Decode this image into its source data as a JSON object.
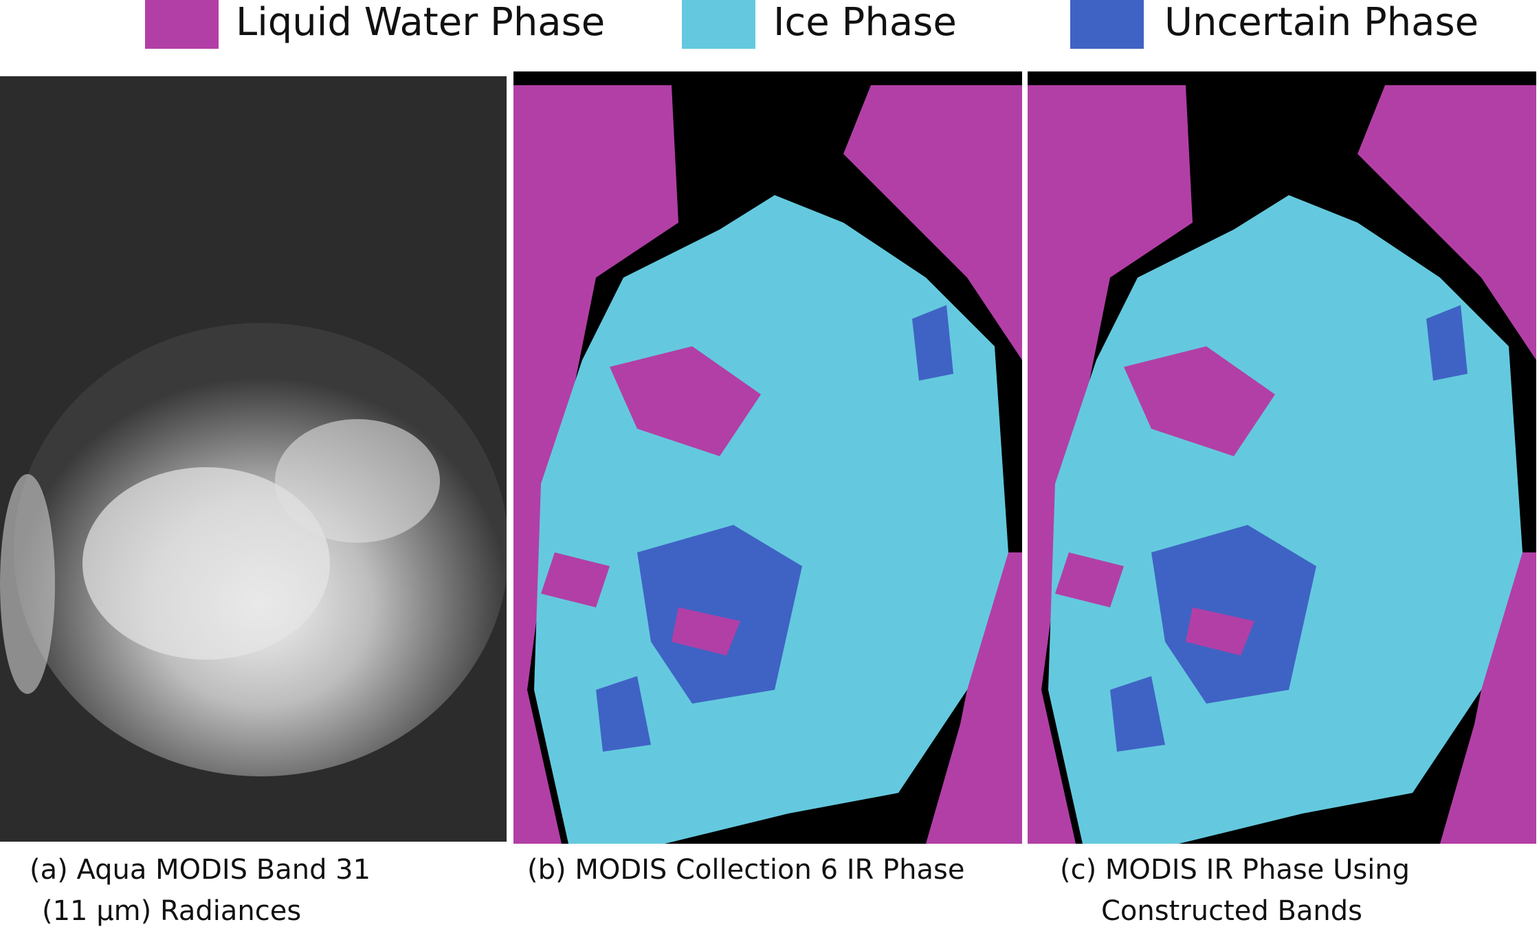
{
  "legend": [
    {
      "label": "Liquid Water Phase",
      "color": "#b23fa6"
    },
    {
      "label": "Ice Phase",
      "color": "#64c9de"
    },
    {
      "label": "Uncertain Phase",
      "color": "#3f63c4"
    }
  ],
  "panels": [
    {
      "caption": [
        "(a) Aqua MODIS Band 31",
        "(11 µm) Radiances"
      ]
    },
    {
      "caption": [
        "(b) MODIS Collection 6  IR Phase"
      ]
    },
    {
      "caption": [
        "(c) MODIS IR Phase Using",
        "Constructed Bands"
      ]
    }
  ]
}
